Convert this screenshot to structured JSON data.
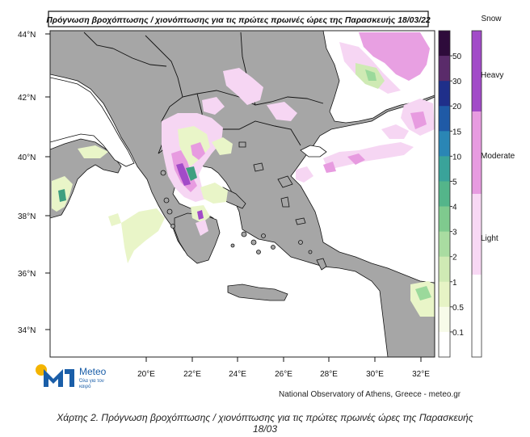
{
  "map": {
    "title": "Πρόγνωση βροχόπτωσης / χιονόπτωσης για τις πρώτες πρωινές ώρες της Παρασκευής 18/03/22",
    "lat_labels": [
      "44°N",
      "42°N",
      "40°N",
      "38°N",
      "36°N",
      "34°N"
    ],
    "lon_labels": [
      "20°E",
      "22°E",
      "24°E",
      "26°E",
      "28°E",
      "30°E",
      "32°E"
    ],
    "colors": {
      "sea": "#ffffff",
      "land": "#a6a6a6",
      "border": "#111111",
      "snow_light": "#f6d6f3",
      "snow_moderate": "#e79be0",
      "snow_heavy": "#a24bc8",
      "rain_light": "#e9f5c8",
      "rain_mid": "#9bd99b",
      "rain_high": "#3f9f80"
    }
  },
  "rain_legend": {
    "labels": [
      "50",
      "30",
      "20",
      "15",
      "10",
      "5",
      "4",
      "3",
      "2",
      "1",
      "0.5",
      "0.1"
    ],
    "colors": [
      "#2e0b3b",
      "#5a2b6a",
      "#1f2f8a",
      "#1f5aa6",
      "#2a86b5",
      "#3aa39a",
      "#54b58a",
      "#7fca8e",
      "#a9dca1",
      "#cfeab4",
      "#e6f3c5",
      "#f7fbe9",
      "#ffffff"
    ]
  },
  "snow_legend": {
    "title": "Snow",
    "labels": [
      "Heavy",
      "Moderate",
      "Light"
    ],
    "colors": [
      "#a24bc8",
      "#e79be0",
      "#f8d8f4",
      "#ffffff"
    ]
  },
  "logo": {
    "word": "Meteo",
    "tagline": "Όλα για τον καιρό"
  },
  "credit": "National Observatory of Athens, Greece - meteo.gr",
  "caption": {
    "line1": "Χάρτης 2. Πρόγνωση βροχόπτωσης / χιονόπτωσης για τις πρώτες  πρωινές ώρες της Παρασκευής",
    "line2": "18/03"
  }
}
